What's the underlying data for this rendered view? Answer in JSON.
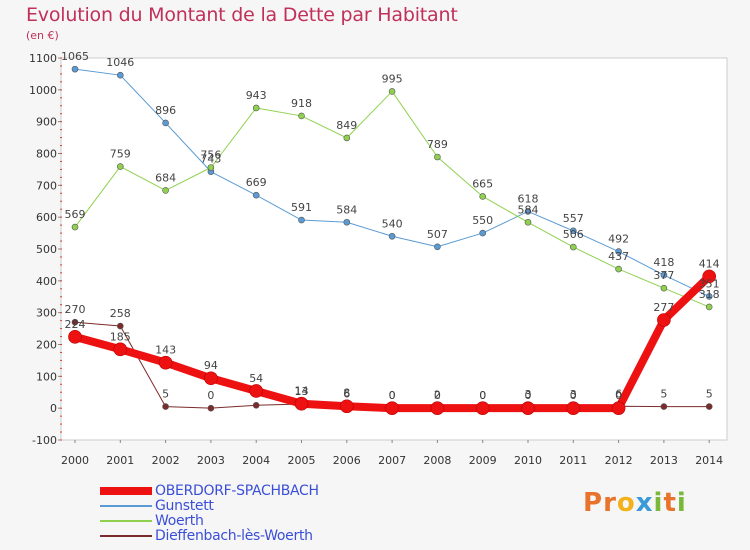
{
  "title": "Evolution du Montant de la Dette par Habitant",
  "subtitle": "(en €)",
  "logo": {
    "text": "Proxiti",
    "colors": [
      "#e8732c",
      "#e8732c",
      "#f1b21b",
      "#3a9ad9",
      "#7ab83a",
      "#e8732c",
      "#7ab83a"
    ]
  },
  "chart_data": {
    "type": "line",
    "title": "Evolution du Montant de la Dette par Habitant",
    "subtitle": "(en €)",
    "xlabel": "",
    "ylabel": "",
    "x": [
      "2000",
      "2001",
      "2002",
      "2003",
      "2004",
      "2005",
      "2006",
      "2007",
      "2008",
      "2009",
      "2010",
      "2011",
      "2012",
      "2013",
      "2014"
    ],
    "ylim": [
      -100,
      1100
    ],
    "yticks": [
      "-100",
      "0",
      "100",
      "200",
      "300",
      "400",
      "500",
      "600",
      "700",
      "800",
      "900",
      "1000",
      "1100"
    ],
    "grid": false,
    "legend": "bottom-left",
    "series": [
      {
        "name": "OBERDORF-SPACHBACH",
        "color": "#ee1111",
        "width": 8,
        "values": [
          224,
          185,
          143,
          94,
          54,
          14,
          6,
          0,
          0,
          0,
          0,
          0,
          0,
          277,
          414
        ],
        "labels": [
          "224",
          "185",
          "143",
          "94",
          "54",
          "14",
          "6",
          "0",
          "0",
          "0",
          "0",
          "0",
          "0",
          "277",
          "414"
        ]
      },
      {
        "name": "Gunstett",
        "color": "#5b9bd5",
        "width": 1,
        "values": [
          1065,
          1046,
          896,
          743,
          669,
          591,
          584,
          540,
          507,
          550,
          618,
          557,
          492,
          418,
          351
        ],
        "labels": [
          "1065",
          "1046",
          "896",
          "743",
          "669",
          "591",
          "584",
          "540",
          "507",
          "550",
          "618",
          "557",
          "492",
          "418",
          "351"
        ]
      },
      {
        "name": "Woerth",
        "color": "#8fd14f",
        "width": 1,
        "values": [
          569,
          759,
          684,
          756,
          943,
          918,
          849,
          995,
          789,
          665,
          584,
          506,
          437,
          377,
          318
        ],
        "labels": [
          "569",
          "759",
          "684",
          "756",
          "943",
          "918",
          "849",
          "995",
          "789",
          "665",
          "584",
          "506",
          "437",
          "377",
          "318"
        ]
      },
      {
        "name": "Dieffenbach-lès-Woerth",
        "color": "#7b2b2b",
        "width": 1,
        "values": [
          270,
          258,
          5,
          0,
          9,
          13,
          8,
          0,
          2,
          0,
          3,
          3,
          6,
          5,
          5
        ],
        "labels": [
          "270",
          "258",
          "5",
          "0",
          "",
          "13",
          "8",
          "0",
          "2",
          "0",
          "3",
          "3",
          "6",
          "5",
          "5"
        ]
      }
    ]
  }
}
